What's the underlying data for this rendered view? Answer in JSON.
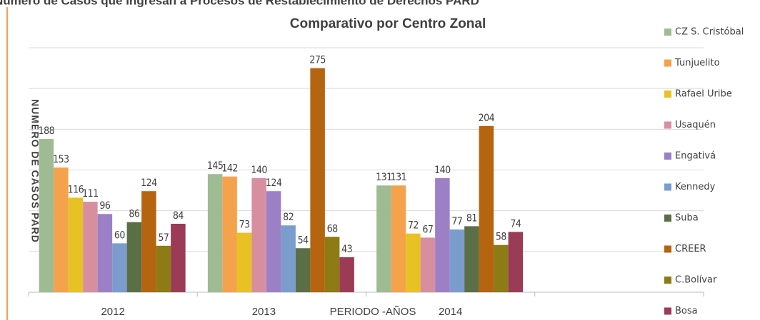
{
  "chart_data": {
    "type": "bar",
    "page_title": "Número de Casos que ingresan a Procesos de Restablecimiento de Derechos PARD",
    "title": "Comparativo por Centro Zonal",
    "y_label": "NUMERO DE CASOS PARD",
    "x_label": "PERIODO -AÑOS",
    "categories": [
      "2012",
      "2013",
      "2014",
      null
    ],
    "ylim": [
      0,
      300
    ],
    "yticks": [
      0,
      50,
      100,
      150,
      200,
      250,
      300
    ],
    "grid": true,
    "legend": "right",
    "series": [
      {
        "name": "CZ S. Cristóbal",
        "color": "#9fbb93",
        "values": [
          188,
          145,
          131,
          null
        ]
      },
      {
        "name": "Tunjuelito",
        "color": "#f5a24c",
        "values": [
          153,
          142,
          131,
          null
        ]
      },
      {
        "name": "Rafael Uribe",
        "color": "#e8c225",
        "values": [
          116,
          73,
          72,
          null
        ]
      },
      {
        "name": "Usaquén",
        "color": "#d78fa0",
        "values": [
          111,
          140,
          67,
          null
        ]
      },
      {
        "name": "Engativá",
        "color": "#9c80c6",
        "values": [
          96,
          124,
          140,
          null
        ]
      },
      {
        "name": "Kennedy",
        "color": "#7b9dcd",
        "values": [
          60,
          82,
          77,
          null
        ]
      },
      {
        "name": "Suba",
        "color": "#5b6f46",
        "values": [
          86,
          54,
          81,
          null
        ]
      },
      {
        "name": "CREER",
        "color": "#b5640f",
        "values": [
          124,
          275,
          204,
          null
        ]
      },
      {
        "name": "C.Bolívar",
        "color": "#8d7b15",
        "values": [
          57,
          68,
          58,
          null
        ]
      },
      {
        "name": "Bosa",
        "color": "#9b3b56",
        "values": [
          84,
          43,
          74,
          null
        ]
      }
    ]
  }
}
